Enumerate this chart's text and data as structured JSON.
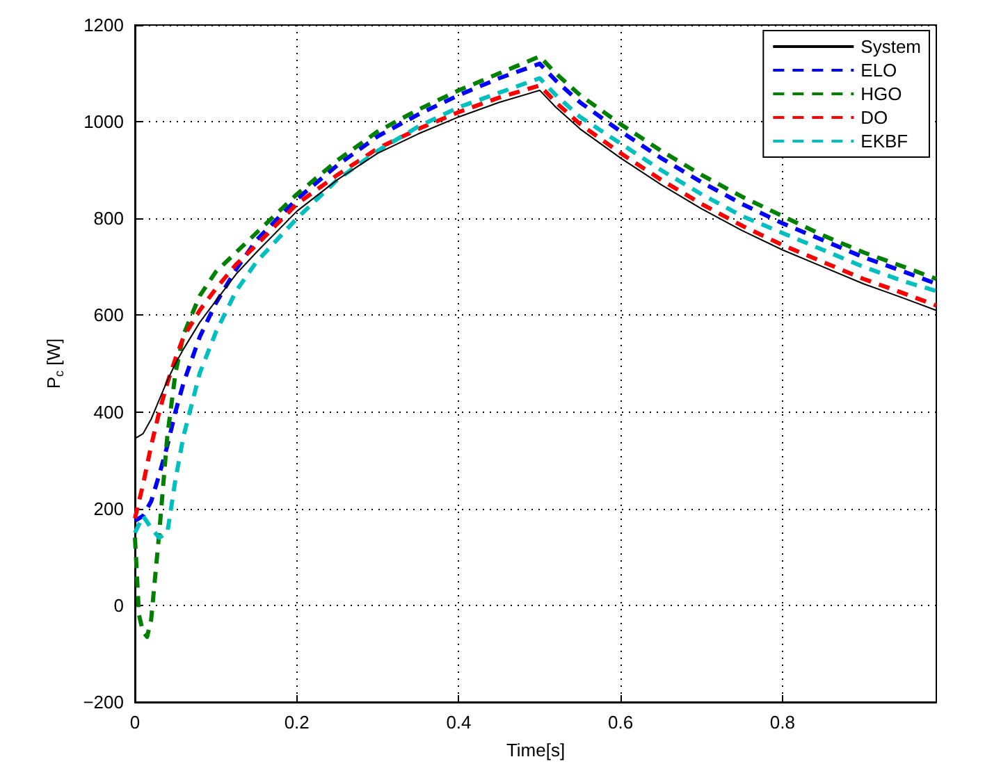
{
  "chart_data": {
    "type": "line",
    "xlabel": "Time[s]",
    "ylabel": "P$_{c}$ [W]",
    "xlim": [
      0,
      0.99
    ],
    "xticks": [
      0,
      0.2,
      0.4,
      0.6,
      0.8
    ],
    "ylim": [
      -200,
      1200
    ],
    "yticks": [
      {
        "value": -200,
        "label": "−200"
      },
      0,
      200,
      400,
      600,
      800,
      1000,
      1200
    ],
    "grid": true,
    "legend": "top right",
    "marker": "none",
    "series": [
      {
        "name": "System",
        "color": "#000000",
        "line_style": "solid",
        "x": [
          0,
          0.01,
          0.02,
          0.03,
          0.04,
          0.05,
          0.06,
          0.08,
          0.1,
          0.125,
          0.15,
          0.2,
          0.25,
          0.3,
          0.35,
          0.4,
          0.45,
          0.5,
          0.52,
          0.55,
          0.6,
          0.65,
          0.7,
          0.75,
          0.8,
          0.85,
          0.9,
          0.95,
          0.99
        ],
        "values": [
          345,
          355,
          385,
          425,
          465,
          500,
          530,
          585,
          630,
          685,
          730,
          815,
          880,
          935,
          975,
          1010,
          1040,
          1065,
          1030,
          985,
          925,
          870,
          820,
          775,
          735,
          700,
          665,
          635,
          610
        ]
      },
      {
        "name": "ELO",
        "color": "#0000ff",
        "line_style": "dashed",
        "x": [
          0,
          0.01,
          0.02,
          0.03,
          0.04,
          0.05,
          0.06,
          0.08,
          0.1,
          0.125,
          0.15,
          0.2,
          0.25,
          0.3,
          0.35,
          0.4,
          0.45,
          0.5,
          0.52,
          0.55,
          0.6,
          0.65,
          0.7,
          0.75,
          0.8,
          0.85,
          0.9,
          0.95,
          0.99
        ],
        "values": [
          175,
          185,
          215,
          270,
          330,
          400,
          460,
          555,
          625,
          695,
          755,
          840,
          910,
          970,
          1015,
          1055,
          1090,
          1120,
          1085,
          1040,
          980,
          925,
          875,
          830,
          790,
          755,
          720,
          690,
          665
        ]
      },
      {
        "name": "HGO",
        "color": "#008000",
        "line_style": "dashed",
        "x": [
          0,
          0.005,
          0.01,
          0.015,
          0.02,
          0.03,
          0.04,
          0.05,
          0.06,
          0.08,
          0.1,
          0.125,
          0.15,
          0.2,
          0.25,
          0.3,
          0.35,
          0.4,
          0.45,
          0.5,
          0.52,
          0.55,
          0.6,
          0.65,
          0.7,
          0.75,
          0.8,
          0.85,
          0.9,
          0.95,
          0.99
        ],
        "values": [
          140,
          -20,
          -55,
          -65,
          -30,
          150,
          350,
          480,
          560,
          640,
          690,
          730,
          770,
          850,
          920,
          980,
          1025,
          1065,
          1100,
          1135,
          1100,
          1055,
          995,
          940,
          890,
          845,
          805,
          765,
          730,
          700,
          675
        ]
      },
      {
        "name": "DO",
        "color": "#ff0000",
        "line_style": "dashed",
        "x": [
          0,
          0.01,
          0.02,
          0.03,
          0.04,
          0.05,
          0.06,
          0.08,
          0.1,
          0.125,
          0.15,
          0.2,
          0.25,
          0.3,
          0.35,
          0.4,
          0.45,
          0.5,
          0.52,
          0.55,
          0.6,
          0.65,
          0.7,
          0.75,
          0.8,
          0.85,
          0.9,
          0.95,
          0.99
        ],
        "values": [
          180,
          250,
          330,
          400,
          460,
          510,
          555,
          610,
          655,
          705,
          745,
          830,
          890,
          945,
          985,
          1020,
          1050,
          1075,
          1040,
          995,
          935,
          880,
          830,
          785,
          745,
          710,
          675,
          645,
          620
        ]
      },
      {
        "name": "EKBF",
        "color": "#00bfbf",
        "line_style": "dashed",
        "x": [
          0,
          0.01,
          0.02,
          0.03,
          0.04,
          0.05,
          0.06,
          0.08,
          0.1,
          0.125,
          0.15,
          0.2,
          0.25,
          0.3,
          0.35,
          0.4,
          0.45,
          0.5,
          0.52,
          0.55,
          0.6,
          0.65,
          0.7,
          0.75,
          0.8,
          0.85,
          0.9,
          0.95,
          0.99
        ],
        "values": [
          150,
          185,
          160,
          140,
          150,
          260,
          350,
          480,
          565,
          650,
          710,
          800,
          880,
          940,
          990,
          1030,
          1060,
          1090,
          1055,
          1010,
          955,
          900,
          850,
          805,
          770,
          735,
          700,
          670,
          650
        ]
      }
    ]
  }
}
